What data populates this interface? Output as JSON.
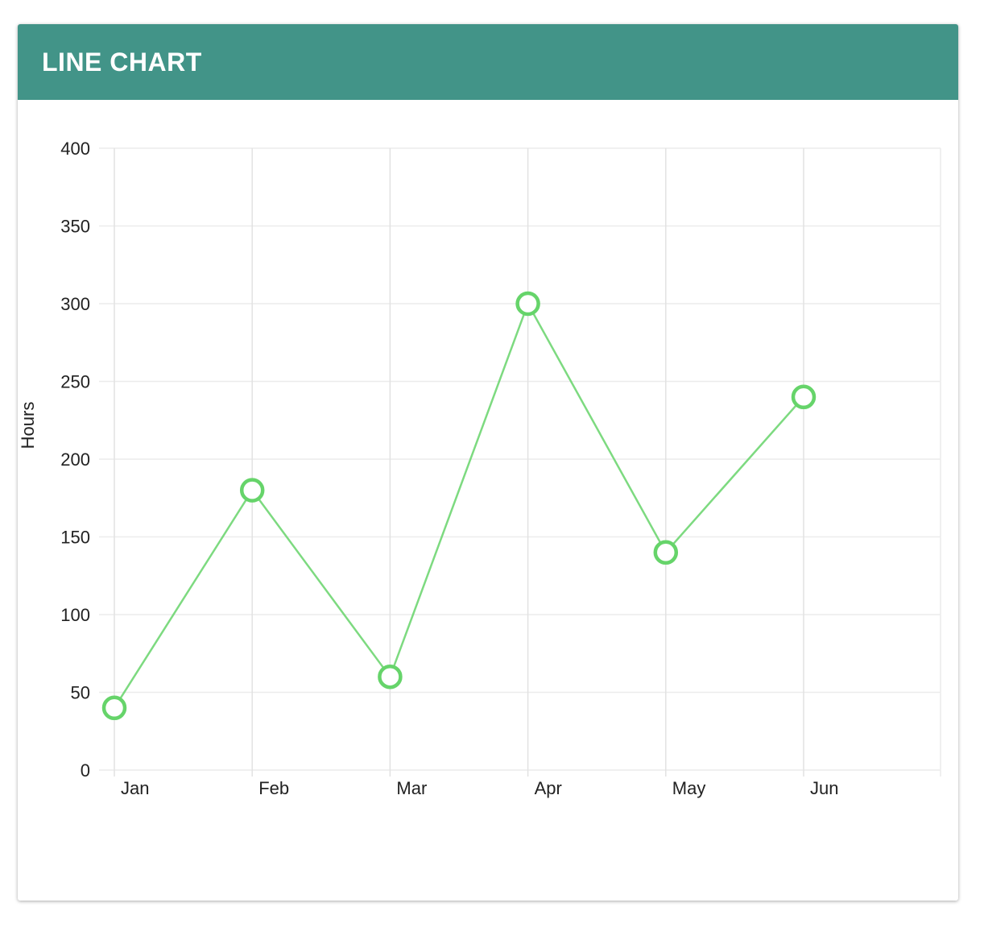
{
  "card": {
    "title": "LINE CHART",
    "header_color": "#429488"
  },
  "chart_data": {
    "type": "line",
    "categories": [
      "Jan",
      "Feb",
      "Mar",
      "Apr",
      "May",
      "Jun"
    ],
    "series": [
      {
        "values": [
          40,
          180,
          60,
          300,
          140,
          240
        ],
        "color": "#66d46a"
      }
    ],
    "ylabel": "Hours",
    "xlabel": "",
    "title": "",
    "ylim": [
      0,
      400
    ],
    "yticks": [
      0,
      50,
      100,
      150,
      200,
      250,
      300,
      350,
      400
    ],
    "grid": true,
    "legend": "none"
  }
}
